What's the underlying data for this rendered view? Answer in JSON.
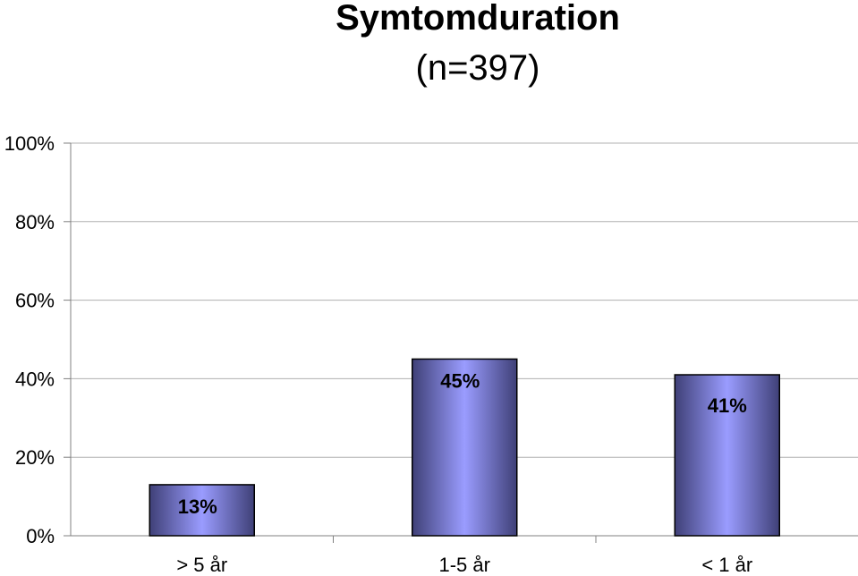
{
  "chart_data": {
    "type": "bar",
    "title": "Symtomduration",
    "subtitle": "(n=397)",
    "categories": [
      "> 5 år",
      "1-5 år",
      "< 1 år"
    ],
    "values": [
      13,
      45,
      41
    ],
    "data_labels": [
      "13%",
      "45%",
      "41%"
    ],
    "yticks": [
      "0%",
      "20%",
      "40%",
      "60%",
      "80%",
      "100%"
    ],
    "ylim": [
      0,
      100
    ],
    "grid": true,
    "legend": "none",
    "colors": {
      "bar_center": "#9a9cff",
      "bar_edge": "#3f4077",
      "grid": "#b0b0b0"
    }
  }
}
